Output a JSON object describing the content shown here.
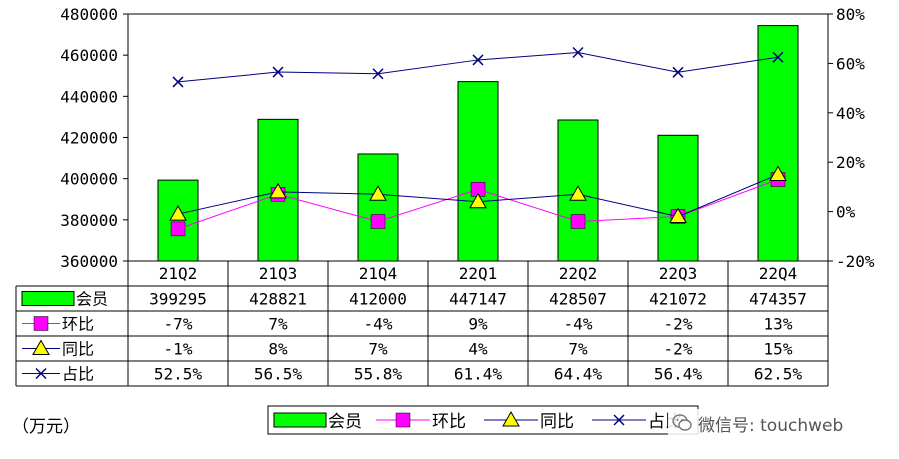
{
  "chart_data": {
    "type": "bar",
    "categories": [
      "21Q2",
      "21Q3",
      "21Q4",
      "22Q1",
      "22Q2",
      "22Q3",
      "22Q4"
    ],
    "unit_label": "（万元）",
    "bar_series": {
      "name": "会员",
      "color": "#00ff00",
      "values": [
        399295,
        428821,
        412000,
        447147,
        428507,
        421072,
        474357
      ]
    },
    "line_series": [
      {
        "name": "环比",
        "color": "#ff00ff",
        "marker": "square",
        "values": [
          -7,
          7,
          -4,
          9,
          -4,
          -2,
          13
        ],
        "labels": [
          "-7%",
          "7%",
          "-4%",
          "9%",
          "-4%",
          "-2%",
          "13%"
        ]
      },
      {
        "name": "同比",
        "color": "#000080",
        "marker": "triangle",
        "marker_fill": "#ffff00",
        "values": [
          -1,
          8,
          7,
          4,
          7,
          -2,
          15
        ],
        "labels": [
          "-1%",
          "8%",
          "7%",
          "4%",
          "7%",
          "-2%",
          "15%"
        ]
      },
      {
        "name": "占比",
        "color": "#000080",
        "marker": "x",
        "values": [
          52.5,
          56.5,
          55.8,
          61.4,
          64.4,
          56.4,
          62.5
        ],
        "labels": [
          "52.5%",
          "56.5%",
          "55.8%",
          "61.4%",
          "64.4%",
          "56.4%",
          "62.5%"
        ]
      }
    ],
    "y_left": {
      "min": 360000,
      "max": 480000,
      "ticks": [
        "360000",
        "380000",
        "400000",
        "420000",
        "440000",
        "460000",
        "480000"
      ]
    },
    "y_right": {
      "min": -20,
      "max": 80,
      "ticks": [
        "-20%",
        "0%",
        "20%",
        "40%",
        "60%",
        "80%"
      ]
    },
    "legend": {
      "placement": "bottom",
      "items": [
        "会员",
        "环比",
        "同比",
        "占比"
      ]
    },
    "grid": false
  },
  "watermark": {
    "text": "微信号: touchweb",
    "icon": "wechat-icon"
  }
}
